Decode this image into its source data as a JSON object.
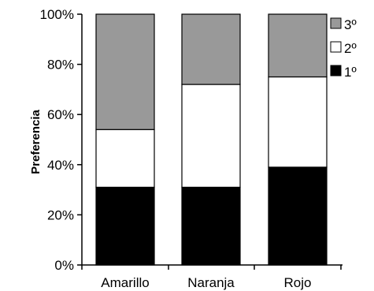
{
  "chart_data": {
    "type": "bar",
    "stacked": true,
    "title": "",
    "xlabel": "",
    "ylabel": "Preferencia",
    "ylim": [
      0,
      100
    ],
    "yticks": [
      "0%",
      "20%",
      "40%",
      "60%",
      "80%",
      "100%"
    ],
    "categories": [
      "Amarillo",
      "Naranja",
      "Rojo"
    ],
    "series": [
      {
        "name": "1º",
        "color": "#000000",
        "values": [
          31,
          31,
          39
        ]
      },
      {
        "name": "2º",
        "color": "#ffffff",
        "values": [
          23,
          41,
          36
        ]
      },
      {
        "name": "3º",
        "color": "#999999",
        "values": [
          46,
          28,
          25
        ]
      }
    ],
    "legend_order": [
      "3º",
      "2º",
      "1º"
    ],
    "legend_position": "right",
    "grid": false
  }
}
